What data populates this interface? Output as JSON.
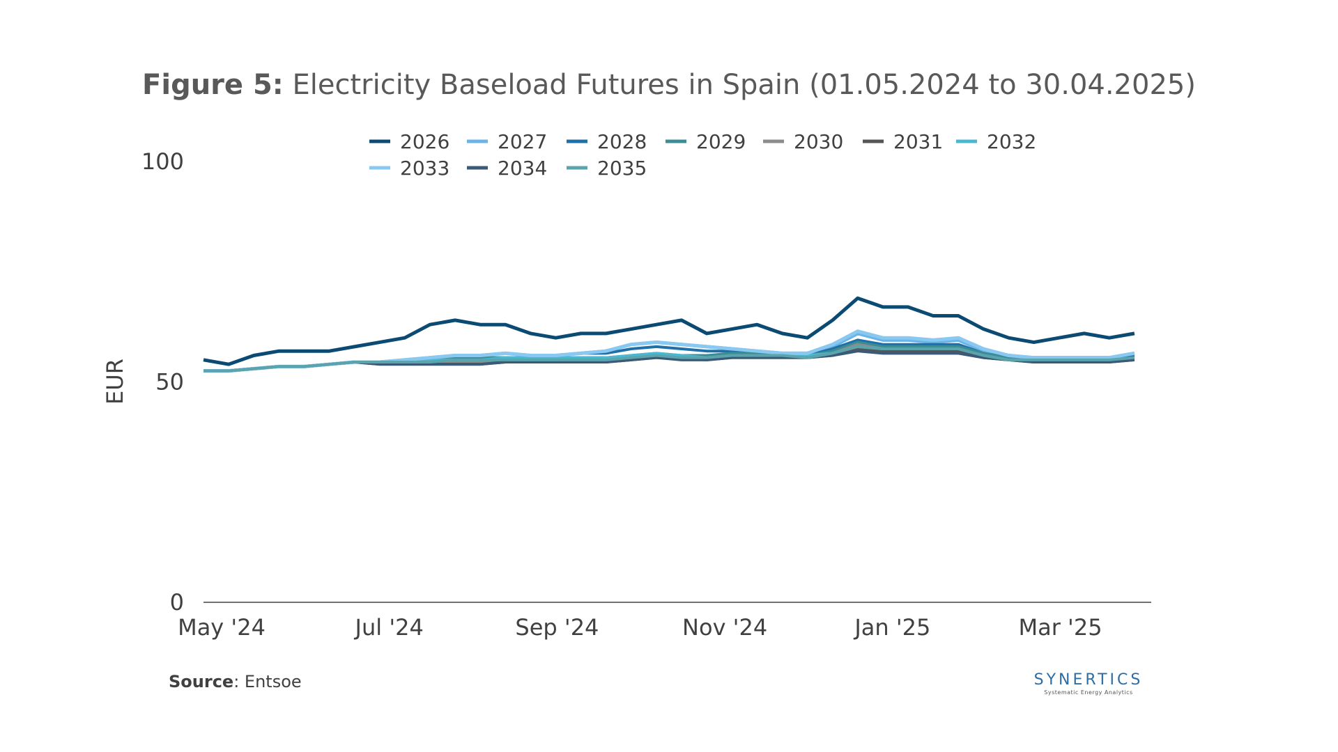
{
  "title_bold": "Figure 5:",
  "title_rest": " Electricity Baseload Futures in Spain (01.05.2024 to 30.04.2025)",
  "source_label": "Source",
  "source_text": ": Entsoe",
  "logo_name": "SYNERTICS",
  "logo_tagline": "Systematic Energy Analytics",
  "chart_data": {
    "type": "line",
    "title": "Figure 5: Electricity Baseload Futures in Spain (01.05.2024 to 30.04.2025)",
    "xlabel": "",
    "ylabel": "EUR",
    "ylim": [
      0,
      100
    ],
    "yticks": [
      0,
      50,
      100
    ],
    "xlim": [
      0,
      11.3
    ],
    "xticks": [
      {
        "value": 0,
        "label": "May '24"
      },
      {
        "value": 2,
        "label": "Jul '24"
      },
      {
        "value": 4,
        "label": "Sep '24"
      },
      {
        "value": 6,
        "label": "Nov '24"
      },
      {
        "value": 8,
        "label": "Jan '25"
      },
      {
        "value": 10,
        "label": "Mar '25"
      }
    ],
    "legend_position": "top",
    "x": [
      0,
      0.3,
      0.6,
      0.9,
      1.2,
      1.5,
      1.8,
      2.1,
      2.4,
      2.7,
      3.0,
      3.3,
      3.6,
      3.9,
      4.2,
      4.5,
      4.8,
      5.1,
      5.4,
      5.7,
      6.0,
      6.3,
      6.6,
      6.9,
      7.2,
      7.5,
      7.8,
      8.1,
      8.4,
      8.7,
      9.0,
      9.3,
      9.6,
      9.9,
      10.2,
      10.5,
      10.8,
      11.1
    ],
    "series": [
      {
        "name": "2026",
        "color": "#0b4a72",
        "values": [
          55,
          54,
          56,
          57,
          57,
          57,
          58,
          59,
          60,
          63,
          64,
          63,
          63,
          61,
          60,
          61,
          61,
          62,
          63,
          64,
          61,
          62,
          63,
          61,
          60,
          64,
          69,
          67,
          67,
          65,
          65,
          62,
          60,
          59,
          60,
          61,
          60,
          61
        ]
      },
      {
        "name": "2027",
        "color": "#6ab4e8",
        "values": [
          52.5,
          52.5,
          53,
          53.5,
          53.5,
          54,
          54.5,
          54.5,
          55,
          55.5,
          56,
          56,
          56.5,
          56,
          56,
          56.5,
          57,
          58.5,
          59,
          58.5,
          58,
          57.5,
          57,
          56.5,
          56.5,
          58,
          61,
          59.5,
          59.5,
          59,
          59.5,
          57,
          56,
          55.5,
          55.5,
          55.5,
          55.5,
          56.5
        ]
      },
      {
        "name": "2028",
        "color": "#1f6fa8",
        "values": [
          52.5,
          52.5,
          53,
          53.5,
          53.5,
          54,
          54.5,
          54.5,
          55,
          55.5,
          56,
          56,
          56.5,
          56,
          56,
          56.5,
          56.5,
          57.5,
          58,
          57.5,
          57,
          57,
          56.5,
          56,
          56,
          57.5,
          59.5,
          58.5,
          58.5,
          58.5,
          58.5,
          56.5,
          55.5,
          55.5,
          55.5,
          55.5,
          55,
          56
        ]
      },
      {
        "name": "2029",
        "color": "#3c8c95",
        "values": [
          52.5,
          52.5,
          53,
          53.5,
          53.5,
          54,
          54.5,
          54.5,
          55,
          55,
          55.5,
          55.5,
          55.5,
          55.5,
          55.5,
          55.5,
          55.5,
          56,
          56.5,
          56,
          56,
          56.5,
          56.5,
          56,
          56,
          57,
          59,
          58,
          58,
          58,
          58,
          56.5,
          55.5,
          55,
          55,
          55,
          55,
          55.5
        ]
      },
      {
        "name": "2030",
        "color": "#8c8c8c",
        "values": [
          52.5,
          52.5,
          53,
          53.5,
          53.5,
          54,
          54.5,
          54.5,
          54.5,
          54.5,
          54.5,
          54.5,
          55,
          55,
          55,
          55,
          55,
          55.5,
          56,
          56,
          55.5,
          56,
          56,
          56,
          55.5,
          56.5,
          58.5,
          57.5,
          57.5,
          57.5,
          57.5,
          56,
          55,
          55,
          55,
          55,
          55,
          55.5
        ]
      },
      {
        "name": "2031",
        "color": "#555555",
        "values": [
          52.5,
          52.5,
          53,
          53.5,
          53.5,
          54,
          54.5,
          54,
          54,
          54,
          54,
          54,
          54.5,
          54.5,
          54.5,
          54.5,
          54.5,
          55,
          55.5,
          55.5,
          55,
          55.5,
          55.5,
          55.5,
          55.5,
          56,
          57.5,
          57,
          57,
          57,
          57,
          55.5,
          55,
          54.5,
          54.5,
          54.5,
          54.5,
          55
        ]
      },
      {
        "name": "2032",
        "color": "#4bb8d0",
        "values": [
          52.5,
          52.5,
          53,
          53.5,
          53.5,
          54,
          54.5,
          54.5,
          54.5,
          55,
          55,
          55,
          55.5,
          55.5,
          55.5,
          55.5,
          55.5,
          56,
          56.5,
          56,
          55.5,
          56,
          56,
          56,
          56,
          56.5,
          58,
          57.5,
          57.5,
          57.5,
          57.5,
          56,
          55,
          55,
          55,
          55,
          55,
          55.5
        ]
      },
      {
        "name": "2033",
        "color": "#89c8f0",
        "values": [
          52.5,
          52.5,
          53,
          53.5,
          53.5,
          54,
          54.5,
          54.5,
          55,
          55.5,
          56,
          56,
          56.5,
          56,
          56,
          56.5,
          57,
          58.5,
          59,
          58.5,
          58,
          57.5,
          57,
          56.5,
          56.5,
          58.5,
          61.5,
          60,
          60,
          59.5,
          60,
          57.5,
          56,
          55.5,
          55.5,
          55.5,
          55.5,
          56.5
        ]
      },
      {
        "name": "2034",
        "color": "#3a5a78",
        "values": [
          52.5,
          52.5,
          53,
          53.5,
          53.5,
          54,
          54.5,
          54,
          54,
          54,
          54,
          54,
          54.5,
          54.5,
          54.5,
          54.5,
          54.5,
          55,
          55.5,
          55,
          55,
          55.5,
          55.5,
          55.5,
          55.5,
          56,
          57,
          56.5,
          56.5,
          56.5,
          56.5,
          55.5,
          55,
          54.5,
          54.5,
          54.5,
          54.5,
          55
        ]
      },
      {
        "name": "2035",
        "color": "#5aa5ad",
        "values": [
          52.5,
          52.5,
          53,
          53.5,
          53.5,
          54,
          54.5,
          54.5,
          54.5,
          54.5,
          55,
          55,
          55,
          55,
          55,
          55,
          55,
          55.5,
          56,
          55.5,
          55.5,
          56,
          56,
          56,
          55.5,
          56.5,
          58,
          57.5,
          57.5,
          57.5,
          57.5,
          56,
          55,
          55,
          55,
          55,
          55,
          55.5
        ]
      }
    ]
  }
}
